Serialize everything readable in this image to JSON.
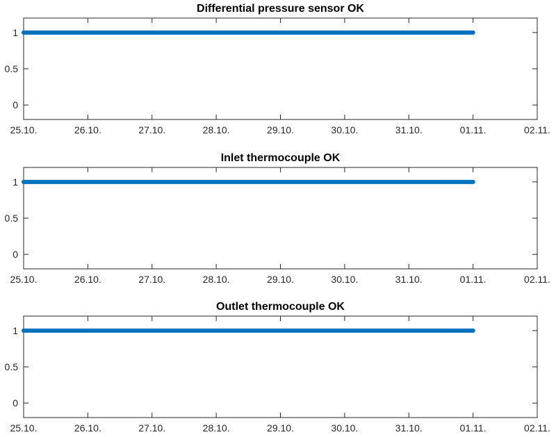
{
  "chart_data": [
    {
      "type": "line",
      "title": "Differential pressure sensor OK",
      "x_range": [
        "25.10.",
        "02.11."
      ],
      "x_ticks": [
        "25.10.",
        "26.10.",
        "27.10.",
        "28.10.",
        "29.10.",
        "30.10.",
        "31.10.",
        "01.11.",
        "02.11."
      ],
      "y_ticks": [
        "0",
        "0.5",
        "1"
      ],
      "ylim": [
        -0.2,
        1.2
      ],
      "grid": false,
      "series": [
        {
          "x": [
            "25.10.",
            "01.11."
          ],
          "values": [
            1,
            1
          ],
          "color": "#0072BD"
        }
      ]
    },
    {
      "type": "line",
      "title": "Inlet thermocouple OK",
      "x_range": [
        "25.10.",
        "02.11."
      ],
      "x_ticks": [
        "25.10.",
        "26.10.",
        "27.10.",
        "28.10.",
        "29.10.",
        "30.10.",
        "31.10.",
        "01.11.",
        "02.11."
      ],
      "y_ticks": [
        "0",
        "0.5",
        "1"
      ],
      "ylim": [
        -0.2,
        1.2
      ],
      "grid": false,
      "series": [
        {
          "x": [
            "25.10.",
            "01.11."
          ],
          "values": [
            1,
            1
          ],
          "color": "#0072BD"
        }
      ]
    },
    {
      "type": "line",
      "title": "Outlet thermocouple OK",
      "x_range": [
        "25.10.",
        "02.11."
      ],
      "x_ticks": [
        "25.10.",
        "26.10.",
        "27.10.",
        "28.10.",
        "29.10.",
        "30.10.",
        "31.10.",
        "01.11.",
        "02.11."
      ],
      "y_ticks": [
        "0",
        "0.5",
        "1"
      ],
      "ylim": [
        -0.2,
        1.2
      ],
      "grid": false,
      "series": [
        {
          "x": [
            "25.10.",
            "01.11."
          ],
          "values": [
            1,
            1
          ],
          "color": "#0072BD"
        }
      ]
    }
  ]
}
